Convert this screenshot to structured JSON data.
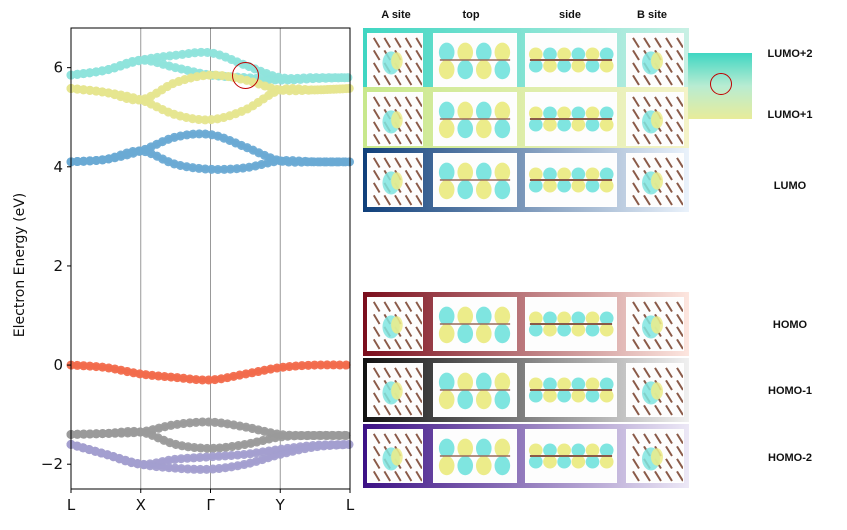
{
  "chart_data": {
    "type": "line",
    "ylabel": "Electron Energy (eV)",
    "xlabel": "",
    "ylim": [
      -2.5,
      6.8
    ],
    "yticks": [
      -2,
      0,
      2,
      4,
      6
    ],
    "ytick_labels": [
      "−2",
      "0",
      "2",
      "4",
      "6"
    ],
    "kpoints": [
      "L",
      "X",
      "Γ",
      "Y",
      "L"
    ],
    "kpoint_positions": [
      0,
      1,
      2,
      3,
      4
    ],
    "grid": "vertical lines at high-symmetry points",
    "series": [
      {
        "band": "LUMO+2 upper",
        "color": "#8fe3dc",
        "x": [
          0,
          0.5,
          1,
          1.5,
          2,
          2.5,
          3,
          3.5,
          4
        ],
        "y": [
          5.85,
          5.95,
          6.15,
          6.25,
          6.3,
          6.05,
          5.8,
          5.8,
          5.8
        ]
      },
      {
        "band": "LUMO+2 lower",
        "color": "#8fe3dc",
        "x": [
          0,
          0.5,
          1,
          1.5,
          2,
          2.5,
          3,
          3.5,
          4
        ],
        "y": [
          5.85,
          5.95,
          6.15,
          6.0,
          5.85,
          5.8,
          5.75,
          5.78,
          5.8
        ]
      },
      {
        "band": "LUMO+1 upper",
        "color": "#e6e58f",
        "x": [
          0,
          0.5,
          1,
          1.5,
          2,
          2.5,
          3,
          3.5,
          4
        ],
        "y": [
          5.58,
          5.5,
          5.35,
          5.7,
          5.85,
          5.75,
          5.55,
          5.55,
          5.58
        ]
      },
      {
        "band": "LUMO+1 lower",
        "color": "#e6e58f",
        "x": [
          0,
          0.5,
          1,
          1.5,
          2,
          2.5,
          3,
          3.5,
          4
        ],
        "y": [
          5.58,
          5.5,
          5.35,
          5.05,
          4.95,
          5.15,
          5.55,
          5.55,
          5.58
        ]
      },
      {
        "band": "LUMO upper",
        "color": "#6aaad4",
        "x": [
          0,
          0.5,
          1,
          1.5,
          2,
          2.5,
          3,
          3.5,
          4
        ],
        "y": [
          4.1,
          4.15,
          4.32,
          4.6,
          4.65,
          4.4,
          4.12,
          4.1,
          4.1
        ]
      },
      {
        "band": "LUMO lower",
        "color": "#6aaad4",
        "x": [
          0,
          0.5,
          1,
          1.5,
          2,
          2.5,
          3,
          3.5,
          4
        ],
        "y": [
          4.1,
          4.15,
          4.32,
          4.05,
          3.95,
          3.98,
          4.12,
          4.1,
          4.1
        ]
      },
      {
        "band": "HOMO",
        "color": "#f26a4b",
        "x": [
          0,
          0.5,
          1,
          1.5,
          2,
          2.5,
          3,
          3.5,
          4
        ],
        "y": [
          0.0,
          -0.05,
          -0.18,
          -0.25,
          -0.3,
          -0.18,
          -0.05,
          0.0,
          0.0
        ]
      },
      {
        "band": "HOMO-1 upper",
        "color": "#9a9a9a",
        "x": [
          0,
          0.5,
          1,
          1.5,
          2,
          2.5,
          3,
          3.5,
          4
        ],
        "y": [
          -1.4,
          -1.38,
          -1.35,
          -1.2,
          -1.15,
          -1.25,
          -1.4,
          -1.42,
          -1.42
        ]
      },
      {
        "band": "HOMO-1 lower",
        "color": "#9a9a9a",
        "x": [
          0,
          0.5,
          1,
          1.5,
          2,
          2.5,
          3,
          3.5,
          4
        ],
        "y": [
          -1.4,
          -1.38,
          -1.35,
          -1.6,
          -1.68,
          -1.6,
          -1.45,
          -1.42,
          -1.42
        ]
      },
      {
        "band": "HOMO-2 upper",
        "color": "#a39fcf",
        "x": [
          0,
          0.5,
          1,
          1.5,
          2,
          2.5,
          3,
          3.5,
          4
        ],
        "y": [
          -1.6,
          -1.8,
          -2.0,
          -1.9,
          -1.85,
          -1.8,
          -1.7,
          -1.62,
          -1.6
        ]
      },
      {
        "band": "HOMO-2 lower",
        "color": "#a39fcf",
        "x": [
          0,
          0.5,
          1,
          1.5,
          2,
          2.5,
          3,
          3.5,
          4
        ],
        "y": [
          -1.6,
          -1.8,
          -2.0,
          -2.08,
          -2.1,
          -2.0,
          -1.8,
          -1.65,
          -1.6
        ]
      }
    ]
  },
  "orbital_panel": {
    "headers": {
      "a_site": "A site",
      "top": "top",
      "side": "side",
      "b_site": "B site"
    },
    "rows": [
      {
        "label": "LUMO+2",
        "gradient": [
          "#3fd6c2",
          "#c8f0e4"
        ]
      },
      {
        "label": "LUMO+1",
        "gradient": [
          "#c8e88c",
          "#f4f3c8"
        ]
      },
      {
        "label": "LUMO",
        "gradient": [
          "#0f3f7a",
          "#eaf2fb"
        ]
      },
      {
        "label": "HOMO",
        "gradient": [
          "#7a0d1c",
          "#fde6df"
        ]
      },
      {
        "label": "HOMO-1",
        "gradient": [
          "#111111",
          "#f0f0f0"
        ]
      },
      {
        "label": "HOMO-2",
        "gradient": [
          "#3c1185",
          "#ece8f6"
        ]
      }
    ],
    "legend_colors": [
      "#3fd6c2",
      "#e8ec9a"
    ]
  },
  "marker_color": "#c00000"
}
